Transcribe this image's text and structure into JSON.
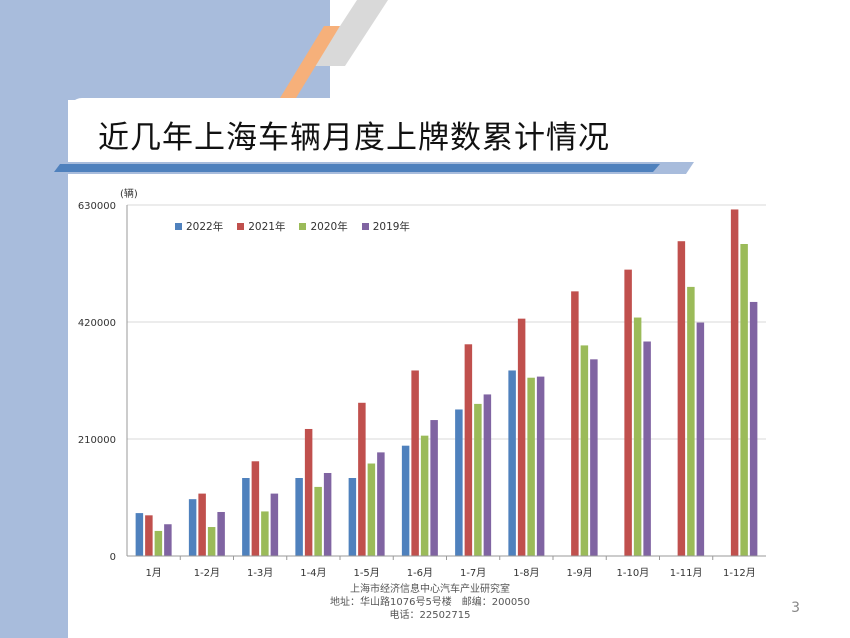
{
  "title": "近几年上海车辆月度上牌数累计情况",
  "page_number": "3",
  "footer": {
    "line1": "上海市经济信息中心汽车产业研究室",
    "line2": "地址：华山路1076号5号楼　邮编：200050",
    "line3": "电话：22502715"
  },
  "colors": {
    "band": "#a8bcdc",
    "stripe_blue": "#4f81bd",
    "stripe_orange": "#f6b07a",
    "stripe_gray": "#d9d9d9"
  },
  "chart_data": {
    "type": "bar",
    "unit_label": "(辆)",
    "categories": [
      "1月",
      "1-2月",
      "1-3月",
      "1-4月",
      "1-5月",
      "1-6月",
      "1-7月",
      "1-8月",
      "1-9月",
      "1-10月",
      "1-11月",
      "1-12月"
    ],
    "ylim": [
      0,
      630000
    ],
    "yticks": [
      0,
      210000,
      420000,
      630000
    ],
    "ytick_labels": [
      "0",
      "210000",
      "420000",
      "630000"
    ],
    "grid": true,
    "legend_position": "top-left",
    "series": [
      {
        "name": "2022年",
        "color": "#4f81bd",
        "values": [
          77000,
          102000,
          140000,
          140000,
          140000,
          198000,
          263000,
          333000,
          null,
          null,
          null,
          null
        ]
      },
      {
        "name": "2021年",
        "color": "#c0504d",
        "values": [
          73000,
          112000,
          170000,
          228000,
          275000,
          333000,
          380000,
          426000,
          475000,
          514000,
          565000,
          622000
        ]
      },
      {
        "name": "2020年",
        "color": "#9bbb59",
        "values": [
          45000,
          52000,
          80000,
          124000,
          166000,
          216000,
          273000,
          320000,
          378000,
          428000,
          483000,
          560000
        ]
      },
      {
        "name": "2019年",
        "color": "#8064a2",
        "values": [
          57000,
          79000,
          112000,
          149000,
          186000,
          244000,
          290000,
          322000,
          353000,
          385000,
          419000,
          456000
        ]
      }
    ]
  }
}
